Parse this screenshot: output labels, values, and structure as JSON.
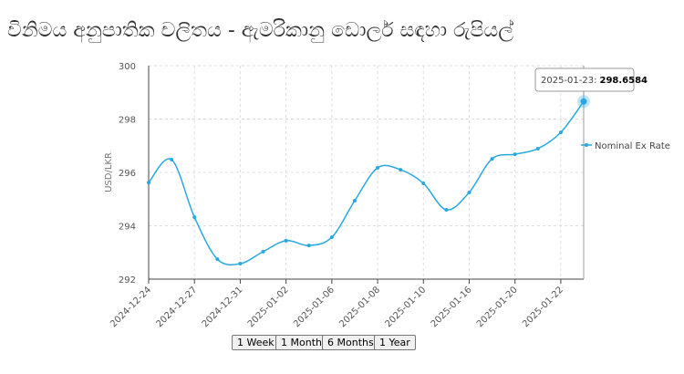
{
  "chart_data": {
    "type": "line",
    "title": "විනිමය අනුපාතික චලිතය - ඇමරිකානු ඩොලර් සඳහා රුපියල්",
    "y_label": "USD/LKR",
    "categories": [
      "2024-12-24",
      null,
      "2024-12-27",
      null,
      "2024-12-31",
      null,
      "2025-01-02",
      null,
      "2025-01-06",
      null,
      "2025-01-08",
      null,
      "2025-01-10",
      null,
      "2025-01-16",
      null,
      "2025-01-20",
      null,
      "2025-01-22",
      "2025-01-23"
    ],
    "xtick_step": 2,
    "series": [
      {
        "name": "Nominal Ex Rate",
        "color": "#29a8e0",
        "values": [
          295.62,
          296.48,
          294.32,
          292.75,
          292.58,
          293.03,
          293.44,
          293.26,
          293.57,
          294.94,
          296.17,
          296.1,
          295.59,
          294.6,
          295.25,
          296.51,
          296.68,
          296.89,
          297.5,
          298.6584
        ]
      }
    ],
    "ylim": [
      292,
      300
    ],
    "yticks": [
      292,
      294,
      296,
      298,
      300
    ],
    "grid": true,
    "legend": "right",
    "tooltip": "2025-01-23:"
  },
  "buttons": [
    "1 Week",
    "1 Month",
    "6 Months",
    "1 Year"
  ]
}
